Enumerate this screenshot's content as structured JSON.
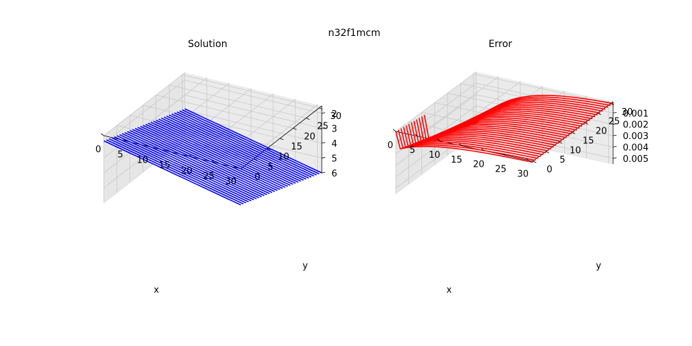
{
  "figure": {
    "suptitle": "n32f1mcm"
  },
  "chart_data": [
    {
      "type": "line",
      "title": "Solution",
      "projection": "3d",
      "color": "#0000ff",
      "xlabel": "x",
      "ylabel": "y",
      "zlabel": "",
      "xlim": [
        0,
        31
      ],
      "ylim": [
        0,
        31
      ],
      "zlim": [
        1.5,
        6.0
      ],
      "xticks": [
        0,
        5,
        10,
        15,
        20,
        25,
        30
      ],
      "yticks": [
        0,
        5,
        10,
        15,
        20,
        25,
        30
      ],
      "zticks": [
        2,
        3,
        4,
        5,
        6
      ],
      "ztick_labels": [
        "2",
        "3",
        "4",
        "5",
        "6"
      ],
      "grid": true,
      "series_description": "one line per y row (0..31) across x (0..31); solution ≈ 1.85 + 0.07·x + 0.07·y (range ≈ 1.85 to 6.0)",
      "n_rows": 32,
      "n_points_per_row": 32,
      "surface": {
        "base": 1.85,
        "dx": 0.0668,
        "dy": 0.0669
      }
    },
    {
      "type": "line",
      "title": "Error",
      "projection": "3d",
      "color": "#ff0000",
      "xlabel": "x",
      "ylabel": "y",
      "zlabel": "",
      "xlim": [
        0,
        31
      ],
      "ylim": [
        0,
        31
      ],
      "zlim": [
        0.0,
        0.0055
      ],
      "xticks": [
        0,
        5,
        10,
        15,
        20,
        25,
        30
      ],
      "yticks": [
        0,
        5,
        10,
        15,
        20,
        25,
        30
      ],
      "zticks": [
        0.001,
        0.002,
        0.003,
        0.004,
        0.005
      ],
      "ztick_labels": [
        "0.001",
        "0.002",
        "0.003",
        "0.004",
        "0.005"
      ],
      "grid": true,
      "series_description": "one line per y row across x; error near 0.004–0.005 at x=0, decaying to ~0 at large x, with a sharp dip at x=0 for small y",
      "n_rows": 32,
      "n_points_per_row": 32,
      "surface": {
        "peak": 0.0045,
        "decay": 0.12
      }
    }
  ]
}
